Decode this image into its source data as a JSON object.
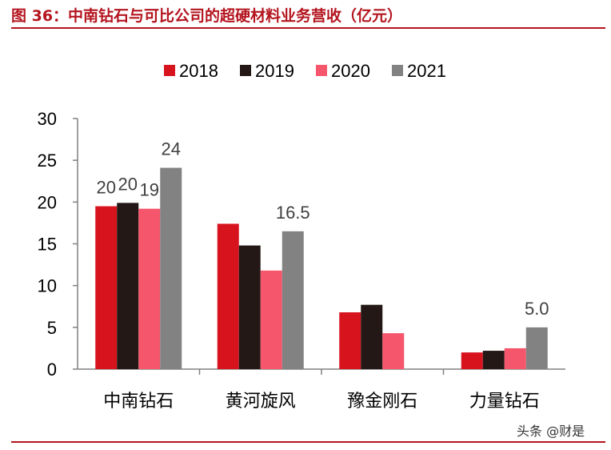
{
  "header": {
    "title": "图 36：中南钻石与可比公司的超硬材料业务营收（亿元）"
  },
  "footer": {
    "watermark": "头条 @财是"
  },
  "chart_data": {
    "type": "bar",
    "title": "",
    "xlabel": "",
    "ylabel": "",
    "ylim": [
      0,
      30
    ],
    "yticks": [
      0,
      5,
      10,
      15,
      20,
      25,
      30
    ],
    "grid": false,
    "legend_position": "top",
    "categories": [
      "中南钻石",
      "黄河旋风",
      "豫金刚石",
      "力量钻石"
    ],
    "series": [
      {
        "name": "2018",
        "color": "#d7141e",
        "values": [
          19.5,
          17.4,
          6.8,
          2.0
        ],
        "labels": [
          "20",
          null,
          null,
          null
        ]
      },
      {
        "name": "2019",
        "color": "#231816",
        "values": [
          19.9,
          14.8,
          7.7,
          2.2
        ],
        "labels": [
          "20",
          null,
          null,
          null
        ]
      },
      {
        "name": "2020",
        "color": "#f5566b",
        "values": [
          19.2,
          11.8,
          4.3,
          2.5
        ],
        "labels": [
          "19",
          null,
          null,
          null
        ]
      },
      {
        "name": "2021",
        "color": "#828282",
        "values": [
          24.1,
          16.5,
          0,
          5.0
        ],
        "labels": [
          "24",
          "16.5",
          null,
          "5.0"
        ]
      }
    ]
  }
}
